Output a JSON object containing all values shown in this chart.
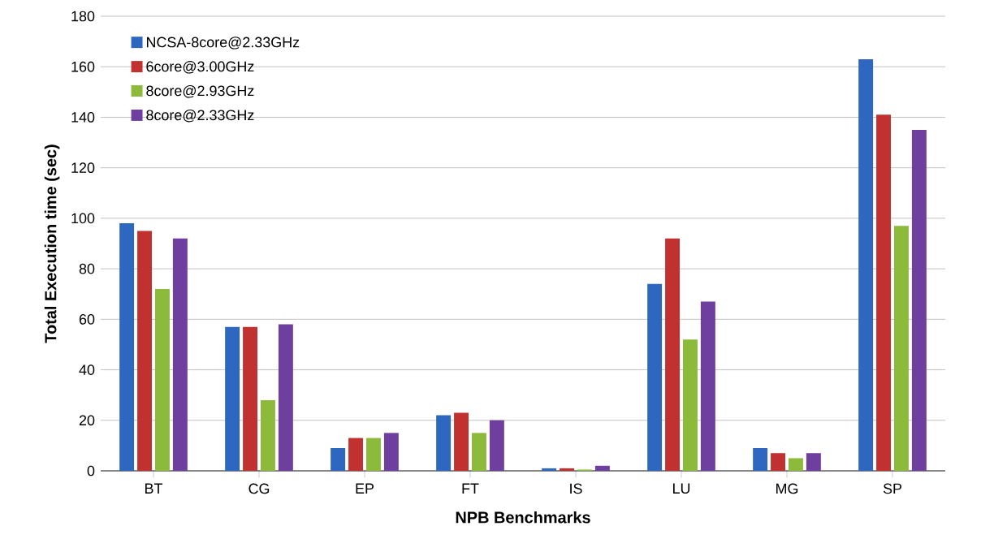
{
  "chart_data": {
    "type": "bar",
    "xlabel": "NPB Benchmarks",
    "ylabel": "Total Execution time (sec)",
    "categories": [
      "BT",
      "CG",
      "EP",
      "FT",
      "IS",
      "LU",
      "MG",
      "SP"
    ],
    "series": [
      {
        "name": "NCSA-8core@2.33GHz",
        "color": "#2e67c0",
        "values": [
          98,
          57,
          9,
          22,
          1,
          74,
          9,
          163
        ]
      },
      {
        "name": "6core@3.00GHz",
        "color": "#c0312f",
        "values": [
          95,
          57,
          13,
          23,
          1,
          92,
          7,
          141
        ]
      },
      {
        "name": "8core@2.93GHz",
        "color": "#8cba3a",
        "values": [
          72,
          28,
          13,
          15,
          0.5,
          52,
          5,
          97
        ]
      },
      {
        "name": "8core@2.33GHz",
        "color": "#6f3f9f",
        "values": [
          92,
          58,
          15,
          20,
          2,
          67,
          7,
          135
        ]
      }
    ],
    "ylim": [
      0,
      180
    ],
    "yticks": [
      0,
      20,
      40,
      60,
      80,
      100,
      120,
      140,
      160,
      180
    ],
    "grid": "y",
    "legend": "top left"
  }
}
